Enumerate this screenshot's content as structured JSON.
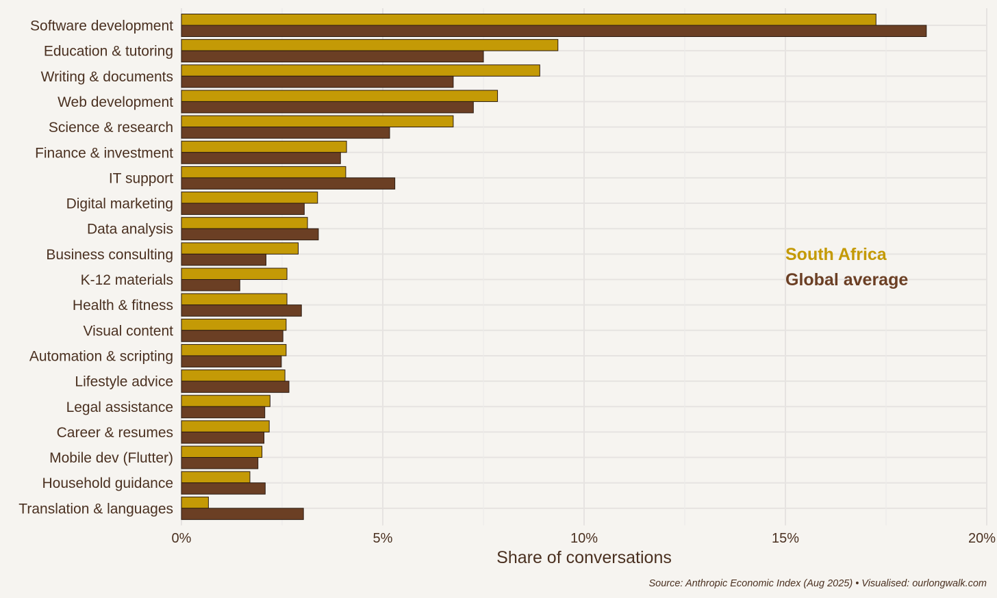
{
  "chart_data": {
    "type": "bar",
    "orientation": "horizontal",
    "categories": [
      "Software development",
      "Education & tutoring",
      "Writing & documents",
      "Web development",
      "Science & research",
      "Finance & investment",
      "IT support",
      "Digital marketing",
      "Data analysis",
      "Business consulting",
      "K-12 materials",
      "Health & fitness",
      "Visual content",
      "Automation & scripting",
      "Lifestyle advice",
      "Legal assistance",
      "Career & resumes",
      "Mobile dev (Flutter)",
      "Household guidance",
      "Translation & languages"
    ],
    "series": [
      {
        "name": "South Africa",
        "color": "#c49a06",
        "values": [
          17.25,
          9.35,
          8.9,
          7.85,
          6.75,
          4.1,
          4.08,
          3.38,
          3.13,
          2.9,
          2.62,
          2.62,
          2.6,
          2.6,
          2.57,
          2.2,
          2.18,
          2.0,
          1.7,
          0.67
        ]
      },
      {
        "name": "Global average",
        "color": "#6b3f24",
        "values": [
          18.5,
          7.5,
          6.75,
          7.25,
          5.17,
          3.95,
          5.3,
          3.05,
          3.4,
          2.1,
          1.45,
          2.98,
          2.52,
          2.48,
          2.67,
          2.07,
          2.05,
          1.9,
          2.08,
          3.03
        ]
      }
    ],
    "xlim": [
      0,
      20
    ],
    "x_ticks": [
      "0%",
      "5%",
      "10%",
      "15%",
      "20%"
    ],
    "xlabel": "Share of conversations",
    "ylabel": "",
    "legend": [
      "South Africa",
      "Global average"
    ],
    "legend_position": "right",
    "source": "Source: Anthropic Economic Index (Aug 2025) • Visualised: ourlongwalk.com"
  }
}
